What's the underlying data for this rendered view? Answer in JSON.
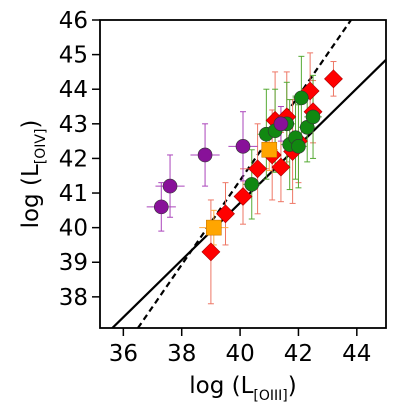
{
  "chart_data": {
    "type": "scatter",
    "title": "",
    "x_axis": {
      "label_main": "log (L",
      "label_sub": "[OIII]",
      "label_close": ")",
      "range": [
        35.2,
        45.0
      ],
      "ticks": [
        36,
        38,
        40,
        42,
        44
      ],
      "tick_labels": [
        "36",
        "38",
        "40",
        "42",
        "44"
      ]
    },
    "y_axis": {
      "label_main": "log (L",
      "label_sub": "[OIV]",
      "label_close": ")",
      "range": [
        37.1,
        46.0
      ],
      "ticks": [
        38,
        39,
        40,
        41,
        42,
        43,
        44,
        45,
        46
      ],
      "tick_labels": [
        "38",
        "39",
        "40",
        "41",
        "42",
        "43",
        "44",
        "45",
        "46"
      ]
    },
    "grid": false,
    "legend": "none",
    "lines": [
      {
        "style": "solid",
        "color": "#000000",
        "points": [
          [
            35.2,
            36.75
          ],
          [
            45.0,
            44.85
          ]
        ]
      },
      {
        "style": "dashed",
        "color": "#000000",
        "points": [
          [
            36.5,
            37.1
          ],
          [
            43.8,
            46.0
          ]
        ]
      }
    ],
    "series": [
      {
        "marker": "diamond",
        "color": "#ff0000",
        "errcolor": "#ee7766",
        "points": [
          {
            "x": 39.0,
            "y": 39.3,
            "ey": 1.5,
            "ex": 0.3
          },
          {
            "x": 39.5,
            "y": 40.4,
            "ey": 0.9,
            "ex": 0.3
          },
          {
            "x": 40.1,
            "y": 40.9,
            "ey": 0.8,
            "ex": 0.3
          },
          {
            "x": 40.6,
            "y": 41.7,
            "ey": 1.3,
            "ex": 0.4
          },
          {
            "x": 41.1,
            "y": 42.1,
            "ey": 1.3,
            "ex": 0.3
          },
          {
            "x": 41.2,
            "y": 43.1,
            "ey": 1.4,
            "ex": 0.3
          },
          {
            "x": 41.4,
            "y": 41.75,
            "ey": 1.0,
            "ex": 0.3
          },
          {
            "x": 41.6,
            "y": 43.2,
            "ey": 1.3,
            "ex": 0.3
          },
          {
            "x": 41.8,
            "y": 42.2,
            "ey": 1.5,
            "ex": 0.3
          },
          {
            "x": 42.0,
            "y": 42.5,
            "ey": 1.2,
            "ex": 0.3
          },
          {
            "x": 42.4,
            "y": 43.95,
            "ey": 1.1,
            "ex": 0.3
          },
          {
            "x": 42.5,
            "y": 43.35,
            "ey": 0.9,
            "ex": 0.3
          },
          {
            "x": 43.2,
            "y": 44.3,
            "ey": 0.5,
            "ex": 0.3
          }
        ]
      },
      {
        "marker": "circle",
        "color": "#118811",
        "errcolor": "#55aa33",
        "points": [
          {
            "x": 40.4,
            "y": 41.25,
            "ey": 1.0,
            "ex": 0.3
          },
          {
            "x": 40.9,
            "y": 42.7,
            "ey": 1.3,
            "ex": 0.3
          },
          {
            "x": 41.2,
            "y": 42.8,
            "ey": 1.2,
            "ex": 0.3
          },
          {
            "x": 41.6,
            "y": 43.0,
            "ey": 1.2,
            "ex": 0.3
          },
          {
            "x": 41.7,
            "y": 42.4,
            "ey": 1.3,
            "ex": 0.3
          },
          {
            "x": 41.9,
            "y": 42.6,
            "ey": 1.2,
            "ex": 0.3
          },
          {
            "x": 42.0,
            "y": 42.35,
            "ey": 1.2,
            "ex": 0.3
          },
          {
            "x": 42.1,
            "y": 43.75,
            "ey": 1.2,
            "ex": 0.3
          },
          {
            "x": 42.3,
            "y": 42.9,
            "ey": 1.0,
            "ex": 0.3
          },
          {
            "x": 42.5,
            "y": 43.2,
            "ey": 1.2,
            "ex": 0.3
          }
        ]
      },
      {
        "marker": "circle",
        "color": "#881199",
        "errcolor": "#aa44bb",
        "points": [
          {
            "x": 37.3,
            "y": 40.6,
            "ey": 0.7,
            "ex": 0.5
          },
          {
            "x": 37.6,
            "y": 41.2,
            "ey": 0.9,
            "ex": 0.5
          },
          {
            "x": 38.8,
            "y": 42.1,
            "ey": 0.9,
            "ex": 0.5
          },
          {
            "x": 40.1,
            "y": 42.35,
            "ey": 1.0,
            "ex": 0.5
          },
          {
            "x": 41.4,
            "y": 43.0,
            "ey": 0.5,
            "ex": 0.3
          }
        ]
      },
      {
        "marker": "square",
        "color": "#ffa500",
        "errcolor": "#ffaa44",
        "points": [
          {
            "x": 39.1,
            "y": 40.0,
            "ey": 0.5,
            "ex": 0.5
          },
          {
            "x": 41.0,
            "y": 42.25,
            "ey": 0.6,
            "ex": 0.3
          }
        ]
      }
    ]
  }
}
